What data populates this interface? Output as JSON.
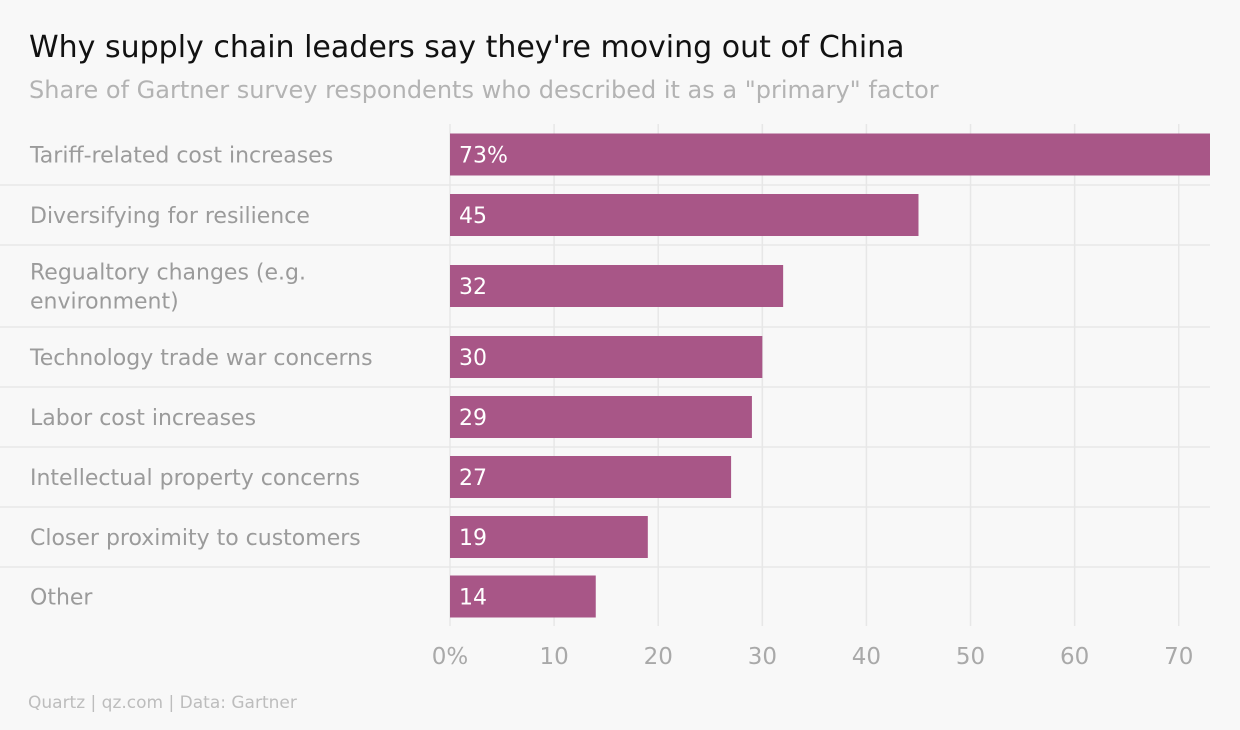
{
  "header": {
    "title": "Why supply chain leaders say they're moving out of China",
    "subtitle": "Share of Gartner survey respondents who described it as a \"primary\" factor"
  },
  "footer": {
    "source": "Quartz | qz.com | Data: Gartner"
  },
  "colors": {
    "bar": "#a85687",
    "bar_label": "#ffffff",
    "category_label": "#9b9b9b",
    "tick_label": "#a9a9a9",
    "grid": "#e7e7e7",
    "background": "#f8f8f8"
  },
  "chart_data": {
    "type": "bar",
    "orientation": "horizontal",
    "categories": [
      [
        "Tariff-related cost increases"
      ],
      [
        "Diversifying for resilience"
      ],
      [
        "Regualtory changes (e.g.",
        "environment)"
      ],
      [
        "Technology trade war concerns"
      ],
      [
        "Labor cost increases"
      ],
      [
        "Intellectual property concerns"
      ],
      [
        "Closer proximity to customers"
      ],
      [
        "Other"
      ]
    ],
    "values": [
      73,
      45,
      32,
      30,
      29,
      27,
      19,
      14
    ],
    "value_labels": [
      "73%",
      "45",
      "32",
      "30",
      "29",
      "27",
      "19",
      "14"
    ],
    "xlim": [
      0,
      73
    ],
    "xticks": [
      0,
      10,
      20,
      30,
      40,
      50,
      60,
      70
    ],
    "xtick_labels": [
      "0%",
      "10",
      "20",
      "30",
      "40",
      "50",
      "60",
      "70"
    ],
    "grid": true,
    "legend": "none"
  }
}
